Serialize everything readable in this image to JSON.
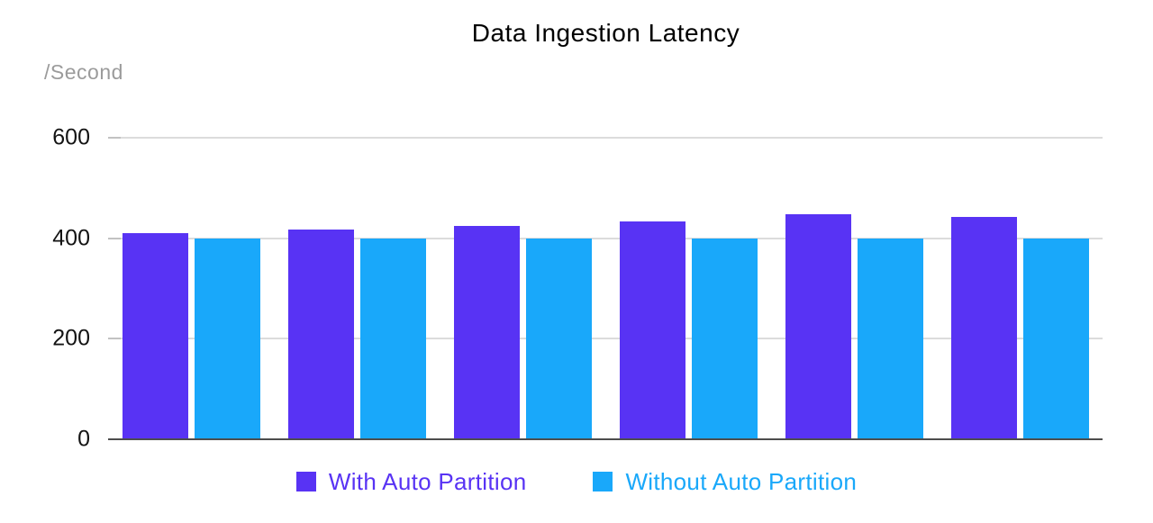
{
  "chart": {
    "title": "Data Ingestion Latency",
    "y_unit": "/Second"
  },
  "chart_data": {
    "type": "bar",
    "title": "Data Ingestion Latency",
    "ylabel": "/Second",
    "xlabel": "",
    "categories": [
      "",
      "",
      "",
      "",
      "",
      ""
    ],
    "series": [
      {
        "name": "With Auto Partition",
        "color": "#5833F4",
        "values": [
          410,
          418,
          425,
          434,
          448,
          442
        ]
      },
      {
        "name": "Without Auto Partition",
        "color": "#19A8FA",
        "values": [
          400,
          400,
          400,
          400,
          400,
          400
        ]
      }
    ],
    "ylim": [
      0,
      600
    ],
    "yticks": [
      600,
      400,
      200,
      0
    ],
    "grid": true,
    "legend_position": "bottom",
    "colors": {
      "gridline": "#dcdcdc",
      "axis_line": "#4d4d4d",
      "tick_label": "#141414",
      "unit_label": "#9b9b9b",
      "title": "#000000"
    }
  }
}
